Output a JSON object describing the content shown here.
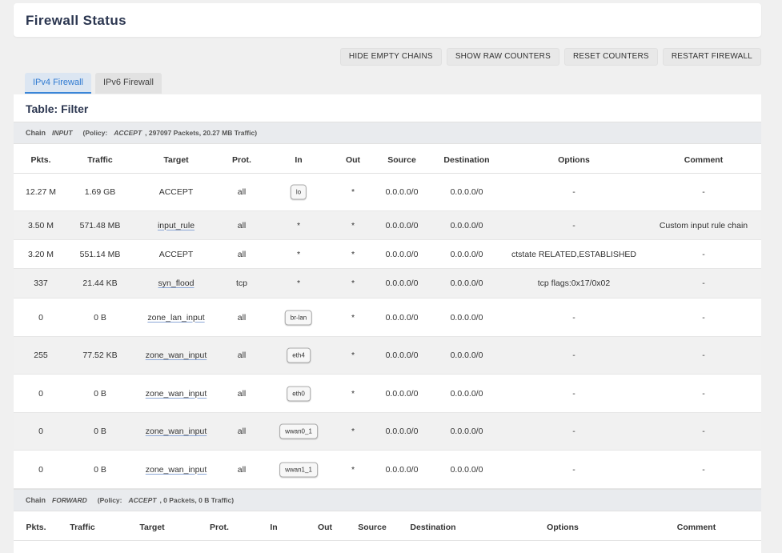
{
  "header": {
    "title": "Firewall Status"
  },
  "actions": {
    "hide_empty": "HIDE EMPTY CHAINS",
    "show_raw": "SHOW RAW COUNTERS",
    "reset": "RESET COUNTERS",
    "restart": "RESTART FIREWALL"
  },
  "tabs": [
    {
      "label": "IPv4 Firewall",
      "active": true
    },
    {
      "label": "IPv6 Firewall",
      "active": false
    }
  ],
  "table": {
    "title": "Table: Filter",
    "columns": [
      "Pkts.",
      "Traffic",
      "Target",
      "Prot.",
      "In",
      "Out",
      "Source",
      "Destination",
      "Options",
      "Comment"
    ],
    "chains": [
      {
        "label": "Chain",
        "name": "INPUT",
        "policy_label": "(Policy:",
        "policy": "ACCEPT",
        "stats": ", 297097 Packets, 20.27 MB Traffic)",
        "rows": [
          {
            "pkts": "12.27 M",
            "traffic": "1.69 GB",
            "target": "ACCEPT",
            "prot": "all",
            "in": "lo",
            "out": "*",
            "source": "0.0.0.0/0",
            "dest": "0.0.0.0/0",
            "options": "-",
            "comment": "-"
          },
          {
            "pkts": "3.50 M",
            "traffic": "571.48 MB",
            "target": "input_rule",
            "prot": "all",
            "in": "*",
            "out": "*",
            "source": "0.0.0.0/0",
            "dest": "0.0.0.0/0",
            "options": "-",
            "comment": "Custom input rule chain"
          },
          {
            "pkts": "3.20 M",
            "traffic": "551.14 MB",
            "target": "ACCEPT",
            "prot": "all",
            "in": "*",
            "out": "*",
            "source": "0.0.0.0/0",
            "dest": "0.0.0.0/0",
            "options": "ctstate RELATED,ESTABLISHED",
            "comment": "-"
          },
          {
            "pkts": "337",
            "traffic": "21.44 KB",
            "target": "syn_flood",
            "prot": "tcp",
            "in": "*",
            "out": "*",
            "source": "0.0.0.0/0",
            "dest": "0.0.0.0/0",
            "options": "tcp flags:0x17/0x02",
            "comment": "-"
          },
          {
            "pkts": "0",
            "traffic": "0 B",
            "target": "zone_lan_input",
            "prot": "all",
            "in": "br-lan",
            "out": "*",
            "source": "0.0.0.0/0",
            "dest": "0.0.0.0/0",
            "options": "-",
            "comment": "-"
          },
          {
            "pkts": "255",
            "traffic": "77.52 KB",
            "target": "zone_wan_input",
            "prot": "all",
            "in": "eth4",
            "out": "*",
            "source": "0.0.0.0/0",
            "dest": "0.0.0.0/0",
            "options": "-",
            "comment": "-"
          },
          {
            "pkts": "0",
            "traffic": "0 B",
            "target": "zone_wan_input",
            "prot": "all",
            "in": "eth0",
            "out": "*",
            "source": "0.0.0.0/0",
            "dest": "0.0.0.0/0",
            "options": "-",
            "comment": "-"
          },
          {
            "pkts": "0",
            "traffic": "0 B",
            "target": "zone_wan_input",
            "prot": "all",
            "in": "wwan0_1",
            "out": "*",
            "source": "0.0.0.0/0",
            "dest": "0.0.0.0/0",
            "options": "-",
            "comment": "-"
          },
          {
            "pkts": "0",
            "traffic": "0 B",
            "target": "zone_wan_input",
            "prot": "all",
            "in": "wwan1_1",
            "out": "*",
            "source": "0.0.0.0/0",
            "dest": "0.0.0.0/0",
            "options": "-",
            "comment": "-"
          }
        ]
      },
      {
        "label": "Chain",
        "name": "FORWARD",
        "policy_label": "(Policy:",
        "policy": "ACCEPT",
        "stats": ", 0 Packets, 0 B Traffic)",
        "rows": []
      }
    ]
  }
}
